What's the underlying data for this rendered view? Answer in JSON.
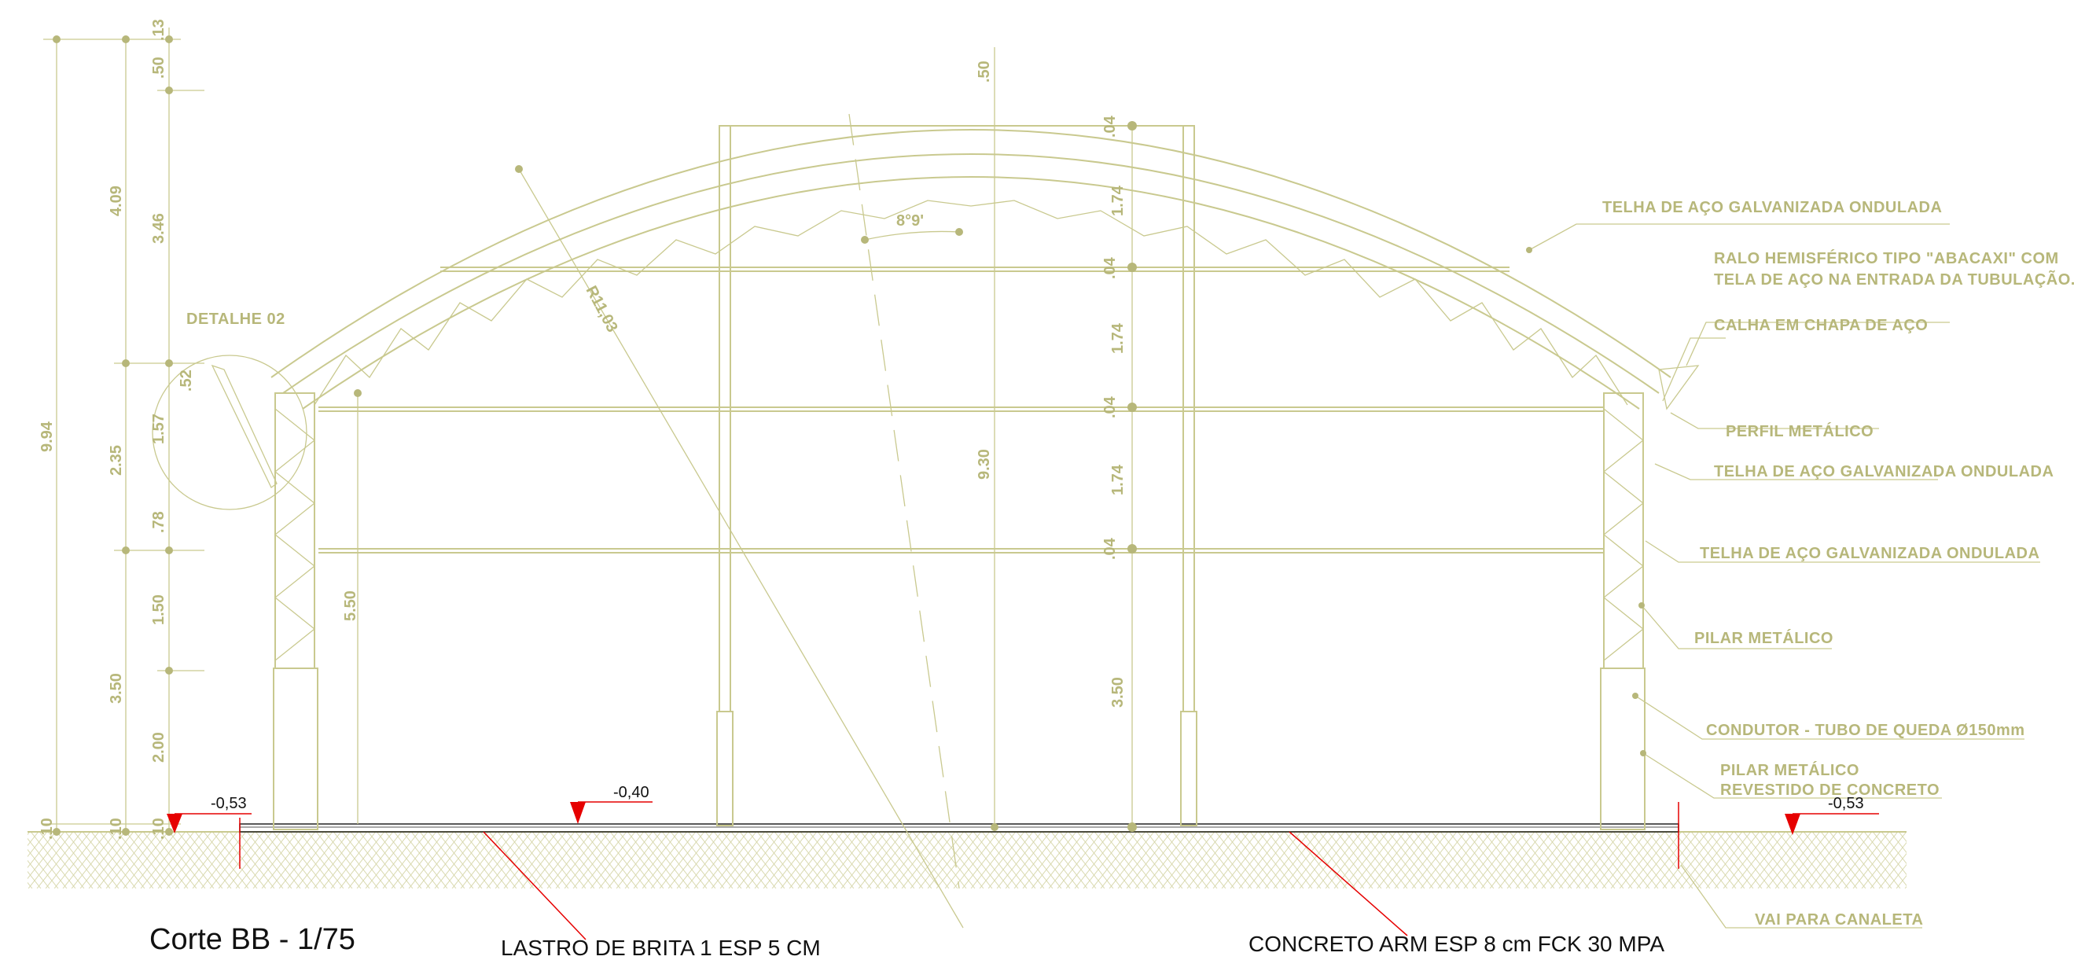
{
  "drawing": {
    "caption": "Corte BB - 1/75",
    "detail_ref": "DETALHE 02",
    "radius_label": "R11,03",
    "angle_label": "8°9'",
    "height_inside": "9.30",
    "col_dim": "5.50",
    "levels": {
      "left": "-0,53",
      "mid": "-0,40",
      "right": "-0,53"
    },
    "left_dims_outer": [
      "9.94",
      ".10"
    ],
    "left_dims_mid": [
      "4.09",
      "2.35",
      "3.50",
      ".10"
    ],
    "left_dims_inner": [
      ".13",
      ".50",
      "3.46",
      ".52",
      "1.57",
      ".78",
      "1.50",
      "2.00",
      ".10"
    ],
    "top_dim": ".50",
    "center_dims": [
      ".04",
      "1.74",
      ".04",
      "1.74",
      ".04",
      "1.74",
      ".04",
      "3.50"
    ],
    "notes_right": [
      "TELHA DE AÇO GALVANIZADA ONDULADA",
      "RALO HEMISFÉRICO TIPO \"ABACAXI\" COM",
      "TELA DE AÇO NA ENTRADA DA TUBULAÇÃO.",
      "CALHA EM CHAPA DE AÇO",
      "PERFIL METÁLICO",
      "TELHA DE AÇO GALVANIZADA ONDULADA",
      "TELHA DE AÇO GALVANIZADA ONDULADA",
      "PILAR METÁLICO",
      "CONDUTOR - TUBO DE QUEDA Ø150mm",
      "PILAR METÁLICO",
      "REVESTIDO DE CONCRETO",
      "VAI PARA CANALETA"
    ],
    "floor_notes": [
      "LASTRO DE BRITA 1 ESP 5 CM",
      "CONCRETO ARM ESP 8 cm FCK 30 MPA"
    ],
    "colors": {
      "line": "#c9c98f",
      "text": "#b7b77a",
      "level_marker": "#e60000"
    }
  }
}
